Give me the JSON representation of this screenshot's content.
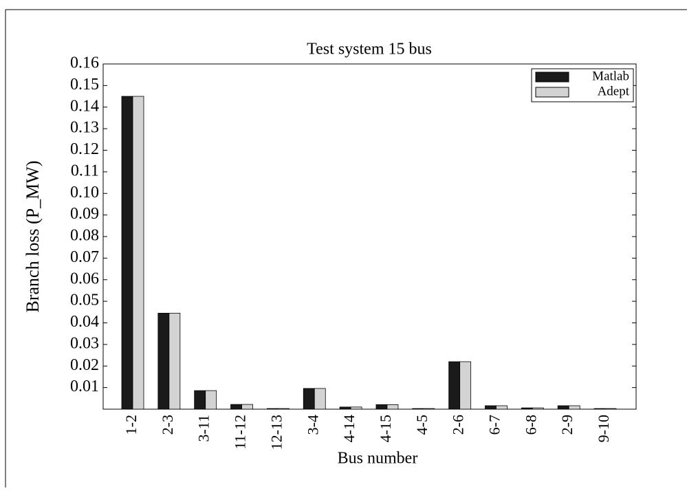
{
  "chart_data": {
    "type": "bar",
    "title": "Test system 15 bus",
    "x_label": "Bus number",
    "y_label": "Branch loss (P_MW)",
    "categories": [
      "1-2",
      "2-3",
      "3-11",
      "11-12",
      "12-13",
      "3-4",
      "4-14",
      "4-15",
      "4-5",
      "2-6",
      "6-7",
      "6-8",
      "2-9",
      "9-10"
    ],
    "series": [
      {
        "name": "Matlab",
        "color": "#1a1a1a",
        "values": [
          0.145,
          0.0445,
          0.0086,
          0.0022,
          0.0003,
          0.0096,
          0.001,
          0.0021,
          0.0003,
          0.022,
          0.0016,
          0.0006,
          0.0016,
          0.0003
        ]
      },
      {
        "name": "Adept",
        "color": "#d3d3d3",
        "values": [
          0.145,
          0.0445,
          0.0086,
          0.0022,
          0.0003,
          0.0096,
          0.001,
          0.0021,
          0.0003,
          0.022,
          0.0016,
          0.0006,
          0.0016,
          0.0003
        ]
      }
    ],
    "ylim": [
      0,
      0.16
    ],
    "yticks": [
      0.01,
      0.02,
      0.03,
      0.04,
      0.05,
      0.06,
      0.07,
      0.08,
      0.09,
      {
        "value": 0.1,
        "label": "0.10"
      },
      0.11,
      0.12,
      0.13,
      0.14,
      0.15,
      0.16
    ],
    "legend": "upper-right"
  }
}
